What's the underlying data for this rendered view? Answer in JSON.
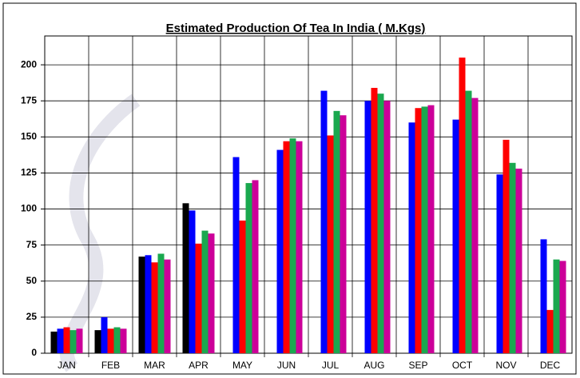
{
  "chart_data": {
    "type": "bar",
    "title": "Estimated Production Of Tea In India ( M.Kgs)",
    "categories": [
      "JAN",
      "FEB",
      "MAR",
      "APR",
      "MAY",
      "JUN",
      "JUL",
      "AUG",
      "SEP",
      "OCT",
      "NOV",
      "DEC"
    ],
    "series": [
      {
        "color": "#000000",
        "values": [
          15,
          16,
          67,
          104,
          null,
          null,
          null,
          null,
          null,
          null,
          null,
          null
        ]
      },
      {
        "color": "#0000ff",
        "values": [
          17,
          25,
          68,
          99,
          136,
          141,
          182,
          175,
          160,
          162,
          124,
          79
        ]
      },
      {
        "color": "#ff0000",
        "values": [
          18,
          17,
          63,
          76,
          92,
          147,
          151,
          184,
          170,
          205,
          148,
          30
        ]
      },
      {
        "color": "#1aa84f",
        "values": [
          16,
          18,
          69,
          85,
          118,
          149,
          168,
          180,
          171,
          182,
          132,
          65
        ]
      },
      {
        "color": "#cc0099",
        "values": [
          17,
          17,
          65,
          83,
          120,
          147,
          165,
          175,
          172,
          177,
          128,
          64
        ]
      }
    ],
    "ylim": [
      0,
      220
    ],
    "yticks": [
      0,
      25,
      50,
      75,
      100,
      125,
      150,
      175,
      200
    ],
    "grid": true
  }
}
